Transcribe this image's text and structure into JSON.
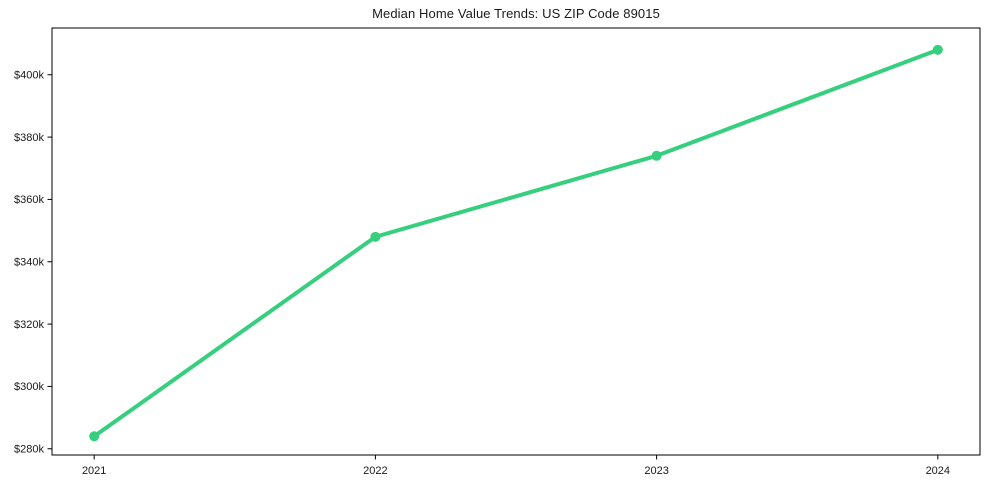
{
  "chart_data": {
    "type": "line",
    "title": "Median Home Value Trends: US ZIP Code 89015",
    "xlabel": "",
    "ylabel": "",
    "x": [
      2021,
      2022,
      2023,
      2024
    ],
    "series": [
      {
        "name": "Median Home Value",
        "values": [
          284000,
          348000,
          374000,
          408000
        ]
      }
    ],
    "x_tick_labels": [
      "2021",
      "2022",
      "2023",
      "2024"
    ],
    "y_ticks": [
      280000,
      300000,
      320000,
      340000,
      360000,
      380000,
      400000
    ],
    "y_tick_labels": [
      "$280k",
      "$300k",
      "$320k",
      "$340k",
      "$360k",
      "$380k",
      "$400k"
    ],
    "xlim": [
      2020.85,
      2024.15
    ],
    "ylim": [
      278000,
      415000
    ],
    "grid": false,
    "legend_position": "none",
    "line_color": "#36cf7d",
    "marker_color": "#36cf7d",
    "marker_shape": "circle",
    "axis_color": "#000000",
    "text_color": "#1a1a1a",
    "background_color": "#ffffff"
  }
}
